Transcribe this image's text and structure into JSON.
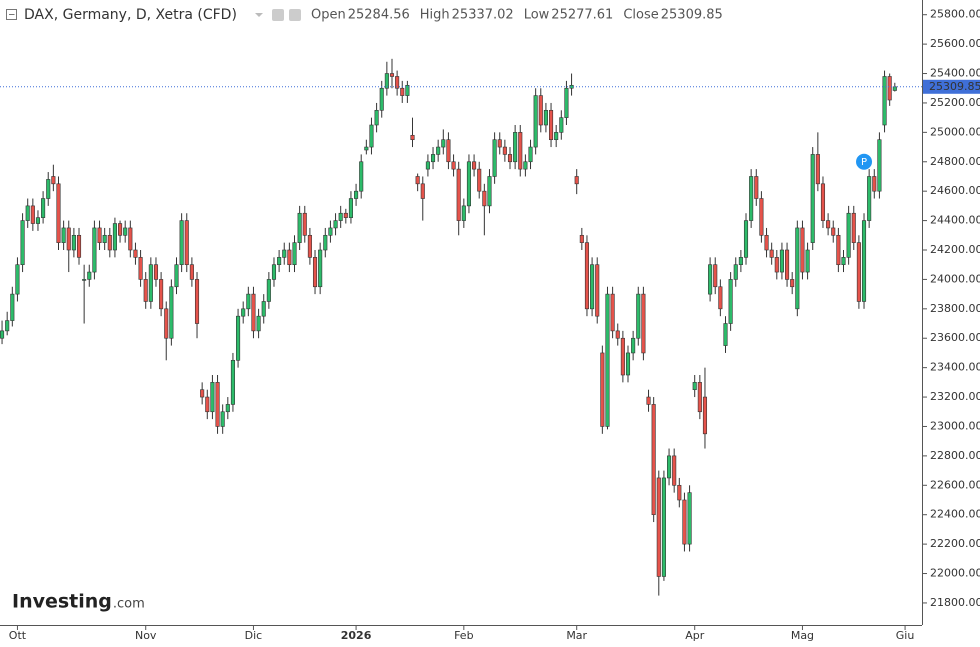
{
  "chart_data": {
    "type": "candlestick",
    "title": "DAX, Germany, D, Xetra (CFD)",
    "ohlc_labels": [
      "Open",
      "High",
      "Low",
      "Close"
    ],
    "ohlc_values": [
      "25284.56",
      "25337.02",
      "25277.61",
      "25309.85"
    ],
    "last_price_label": "25309.85",
    "marker": "P",
    "logo": "Investing",
    "logo_suffix": ".com",
    "up_color": "#2dbb6a",
    "down_color": "#e5534b",
    "price_line_color": "#3f6fd8",
    "ylim": [
      21650,
      25900
    ],
    "yticks": [
      {
        "value": 21800,
        "label": "21800.00"
      },
      {
        "value": 22000,
        "label": "22000.00"
      },
      {
        "value": 22200,
        "label": "22200.00"
      },
      {
        "value": 22400,
        "label": "22400.00"
      },
      {
        "value": 22600,
        "label": "22600.00"
      },
      {
        "value": 22800,
        "label": "22800.00"
      },
      {
        "value": 23000,
        "label": "23000.00"
      },
      {
        "value": 23200,
        "label": "23200.00"
      },
      {
        "value": 23400,
        "label": "23400.00"
      },
      {
        "value": 23600,
        "label": "23600.00"
      },
      {
        "value": 23800,
        "label": "23800.00"
      },
      {
        "value": 24000,
        "label": "24000.00"
      },
      {
        "value": 24200,
        "label": "24200.00"
      },
      {
        "value": 24400,
        "label": "24400.00"
      },
      {
        "value": 24600,
        "label": "24600.00"
      },
      {
        "value": 24800,
        "label": "24800.00"
      },
      {
        "value": 25000,
        "label": "25000.00"
      },
      {
        "value": 25200,
        "label": "25200.00"
      },
      {
        "value": 25400,
        "label": "25400.00"
      },
      {
        "value": 25600,
        "label": "25600.00"
      },
      {
        "value": 25800,
        "label": "25800.00"
      }
    ],
    "xlim": [
      -0.4,
      179.3
    ],
    "xticks": [
      {
        "value": 3,
        "label": "Ott"
      },
      {
        "value": 28,
        "label": "Nov"
      },
      {
        "value": 49,
        "label": "Dic"
      },
      {
        "value": 69,
        "label": "2026"
      },
      {
        "value": 90,
        "label": "Feb"
      },
      {
        "value": 112,
        "label": "Mar"
      },
      {
        "value": 135,
        "label": "Apr"
      },
      {
        "value": 156,
        "label": "Mag"
      },
      {
        "value": 176,
        "label": "Giu"
      }
    ],
    "marker_index": 168,
    "marker_value": 24800,
    "candles": [
      [
        23600,
        23720,
        23560,
        23650
      ],
      [
        23650,
        23780,
        23620,
        23720
      ],
      [
        23720,
        23950,
        23680,
        23900
      ],
      [
        23900,
        24150,
        23850,
        24100
      ],
      [
        24100,
        24450,
        24050,
        24400
      ],
      [
        24400,
        24550,
        24350,
        24500
      ],
      [
        24500,
        24550,
        24330,
        24380
      ],
      [
        24380,
        24470,
        24330,
        24420
      ],
      [
        24420,
        24600,
        24380,
        24550
      ],
      [
        24550,
        24730,
        24500,
        24680
      ],
      [
        24700,
        24780,
        24600,
        24650
      ],
      [
        24650,
        24700,
        24200,
        24250
      ],
      [
        24250,
        24400,
        24200,
        24350
      ],
      [
        24350,
        24400,
        24050,
        24200
      ],
      [
        24200,
        24350,
        24150,
        24300
      ],
      [
        24300,
        24350,
        24100,
        24150
      ],
      [
        24000,
        24100,
        23700,
        24000
      ],
      [
        24000,
        24100,
        23950,
        24050
      ],
      [
        24050,
        24400,
        24000,
        24350
      ],
      [
        24350,
        24400,
        24200,
        24250
      ],
      [
        24250,
        24350,
        24200,
        24300
      ],
      [
        24300,
        24350,
        24150,
        24200
      ],
      [
        24200,
        24420,
        24150,
        24380
      ],
      [
        24380,
        24400,
        24250,
        24300
      ],
      [
        24300,
        24400,
        24250,
        24350
      ],
      [
        24350,
        24400,
        24150,
        24200
      ],
      [
        24200,
        24250,
        24100,
        24150
      ],
      [
        24150,
        24200,
        23950,
        24000
      ],
      [
        24000,
        24050,
        23800,
        23850
      ],
      [
        23850,
        24150,
        23800,
        24100
      ],
      [
        24100,
        24150,
        23950,
        24000
      ],
      [
        24000,
        24050,
        23750,
        23800
      ],
      [
        23800,
        23850,
        23450,
        23600
      ],
      [
        23600,
        24000,
        23550,
        23950
      ],
      [
        23950,
        24150,
        23900,
        24100
      ],
      [
        24100,
        24450,
        24050,
        24400
      ],
      [
        24400,
        24450,
        24050,
        24100
      ],
      [
        24100,
        24150,
        23950,
        24000
      ],
      [
        24000,
        24050,
        23600,
        23700
      ],
      [
        23250,
        23300,
        23150,
        23200
      ],
      [
        23200,
        23250,
        23050,
        23100
      ],
      [
        23100,
        23350,
        23050,
        23300
      ],
      [
        23300,
        23350,
        22950,
        23000
      ],
      [
        23000,
        23150,
        22950,
        23100
      ],
      [
        23100,
        23200,
        23050,
        23150
      ],
      [
        23150,
        23500,
        23100,
        23450
      ],
      [
        23450,
        23800,
        23400,
        23750
      ],
      [
        23750,
        23850,
        23700,
        23800
      ],
      [
        23800,
        23950,
        23750,
        23900
      ],
      [
        23900,
        23950,
        23600,
        23650
      ],
      [
        23650,
        23800,
        23600,
        23750
      ],
      [
        23750,
        23900,
        23700,
        23850
      ],
      [
        23850,
        24050,
        23800,
        24000
      ],
      [
        24000,
        24150,
        23950,
        24100
      ],
      [
        24100,
        24200,
        24050,
        24150
      ],
      [
        24150,
        24250,
        24100,
        24200
      ],
      [
        24200,
        24250,
        24050,
        24100
      ],
      [
        24100,
        24300,
        24050,
        24250
      ],
      [
        24250,
        24500,
        24200,
        24450
      ],
      [
        24450,
        24500,
        24250,
        24300
      ],
      [
        24300,
        24350,
        24100,
        24150
      ],
      [
        24150,
        24200,
        23900,
        23950
      ],
      [
        23950,
        24250,
        23900,
        24200
      ],
      [
        24200,
        24350,
        24150,
        24300
      ],
      [
        24300,
        24400,
        24250,
        24350
      ],
      [
        24350,
        24450,
        24300,
        24400
      ],
      [
        24400,
        24500,
        24350,
        24450
      ],
      [
        24450,
        24480,
        24380,
        24420
      ],
      [
        24420,
        24600,
        24380,
        24550
      ],
      [
        24550,
        24650,
        24500,
        24600
      ],
      [
        24600,
        24850,
        24550,
        24800
      ],
      [
        24880,
        24950,
        24850,
        24900
      ],
      [
        24900,
        25100,
        24850,
        25050
      ],
      [
        25050,
        25200,
        25000,
        25150
      ],
      [
        25150,
        25350,
        25100,
        25300
      ],
      [
        25300,
        25480,
        25250,
        25400
      ],
      [
        25400,
        25500,
        25300,
        25380
      ],
      [
        25380,
        25420,
        25250,
        25300
      ],
      [
        25300,
        25350,
        25200,
        25250
      ],
      [
        25250,
        25350,
        25200,
        25320
      ],
      [
        24980,
        25100,
        24900,
        24950
      ],
      [
        24700,
        24720,
        24600,
        24650
      ],
      [
        24650,
        24700,
        24400,
        24550
      ],
      [
        24750,
        24850,
        24700,
        24800
      ],
      [
        24800,
        24900,
        24750,
        24850
      ],
      [
        24850,
        24950,
        24800,
        24900
      ],
      [
        24900,
        25020,
        24850,
        24950
      ],
      [
        24950,
        25000,
        24750,
        24800
      ],
      [
        24800,
        24850,
        24700,
        24750
      ],
      [
        24750,
        24800,
        24300,
        24400
      ],
      [
        24400,
        24550,
        24350,
        24500
      ],
      [
        24500,
        24850,
        24450,
        24800
      ],
      [
        24800,
        24850,
        24700,
        24750
      ],
      [
        24750,
        24800,
        24550,
        24600
      ],
      [
        24600,
        24650,
        24300,
        24500
      ],
      [
        24500,
        24750,
        24450,
        24700
      ],
      [
        24700,
        25000,
        24650,
        24950
      ],
      [
        24950,
        25000,
        24850,
        24900
      ],
      [
        24900,
        24950,
        24800,
        24850
      ],
      [
        24850,
        24900,
        24750,
        24800
      ],
      [
        24800,
        25050,
        24750,
        25000
      ],
      [
        25000,
        25050,
        24700,
        24750
      ],
      [
        24750,
        24850,
        24700,
        24800
      ],
      [
        24800,
        24950,
        24750,
        24900
      ],
      [
        24900,
        25300,
        24850,
        25250
      ],
      [
        25250,
        25300,
        25000,
        25050
      ],
      [
        25050,
        25200,
        25000,
        25150
      ],
      [
        25150,
        25200,
        24900,
        24950
      ],
      [
        24950,
        25050,
        24900,
        25000
      ],
      [
        25000,
        25150,
        24950,
        25100
      ],
      [
        25100,
        25350,
        25050,
        25300
      ],
      [
        25300,
        25400,
        25250,
        25320
      ],
      [
        24700,
        24750,
        24580,
        24650
      ],
      [
        24300,
        24350,
        24200,
        24250
      ],
      [
        24250,
        24300,
        23750,
        23800
      ],
      [
        23800,
        24150,
        23750,
        24100
      ],
      [
        24100,
        24150,
        23700,
        23750
      ],
      [
        23500,
        23550,
        22950,
        23000
      ],
      [
        23000,
        23950,
        22980,
        23900
      ],
      [
        23900,
        23950,
        23600,
        23650
      ],
      [
        23650,
        23700,
        23550,
        23600
      ],
      [
        23600,
        23650,
        23300,
        23350
      ],
      [
        23350,
        23550,
        23300,
        23500
      ],
      [
        23500,
        23650,
        23450,
        23600
      ],
      [
        23600,
        23950,
        23550,
        23900
      ],
      [
        23900,
        23950,
        23450,
        23500
      ],
      [
        23200,
        23250,
        23100,
        23150
      ],
      [
        23150,
        23200,
        22350,
        22400
      ],
      [
        22650,
        22700,
        21850,
        21980
      ],
      [
        21980,
        22700,
        21950,
        22650
      ],
      [
        22650,
        22850,
        22600,
        22800
      ],
      [
        22800,
        22850,
        22550,
        22600
      ],
      [
        22600,
        22650,
        22450,
        22500
      ],
      [
        22500,
        22550,
        22150,
        22200
      ],
      [
        22200,
        22600,
        22150,
        22550
      ],
      [
        23250,
        23350,
        23200,
        23300
      ],
      [
        23300,
        23350,
        23050,
        23100
      ],
      [
        23200,
        23400,
        22850,
        22950
      ],
      [
        23900,
        24150,
        23850,
        24100
      ],
      [
        24100,
        24150,
        23900,
        23950
      ],
      [
        23950,
        24000,
        23750,
        23800
      ],
      [
        23550,
        23750,
        23500,
        23700
      ],
      [
        23700,
        24050,
        23650,
        24000
      ],
      [
        24000,
        24150,
        23950,
        24100
      ],
      [
        24100,
        24200,
        24050,
        24150
      ],
      [
        24150,
        24450,
        24100,
        24400
      ],
      [
        24400,
        24750,
        24350,
        24700
      ],
      [
        24700,
        24750,
        24500,
        24550
      ],
      [
        24550,
        24600,
        24250,
        24300
      ],
      [
        24300,
        24350,
        24150,
        24200
      ],
      [
        24200,
        24250,
        24100,
        24150
      ],
      [
        24150,
        24200,
        24000,
        24050
      ],
      [
        24050,
        24250,
        24000,
        24200
      ],
      [
        24200,
        24250,
        23950,
        24000
      ],
      [
        24000,
        24050,
        23900,
        23950
      ],
      [
        23800,
        24400,
        23750,
        24350
      ],
      [
        24350,
        24400,
        24000,
        24050
      ],
      [
        24050,
        24250,
        24000,
        24200
      ],
      [
        24250,
        24900,
        24200,
        24850
      ],
      [
        24850,
        25000,
        24600,
        24650
      ],
      [
        24650,
        24700,
        24350,
        24400
      ],
      [
        24400,
        24450,
        24300,
        24350
      ],
      [
        24350,
        24400,
        24250,
        24300
      ],
      [
        24300,
        24350,
        24050,
        24100
      ],
      [
        24100,
        24200,
        24050,
        24150
      ],
      [
        24150,
        24500,
        24100,
        24450
      ],
      [
        24450,
        24500,
        24200,
        24250
      ],
      [
        24250,
        24300,
        23800,
        23850
      ],
      [
        23850,
        24450,
        23800,
        24400
      ],
      [
        24400,
        24750,
        24350,
        24700
      ],
      [
        24700,
        24750,
        24550,
        24600
      ],
      [
        24600,
        25000,
        24550,
        24950
      ],
      [
        25050,
        25420,
        25000,
        25380
      ],
      [
        25380,
        25400,
        25180,
        25220
      ],
      [
        25284.56,
        25337.02,
        25277.61,
        25309.85
      ]
    ]
  }
}
